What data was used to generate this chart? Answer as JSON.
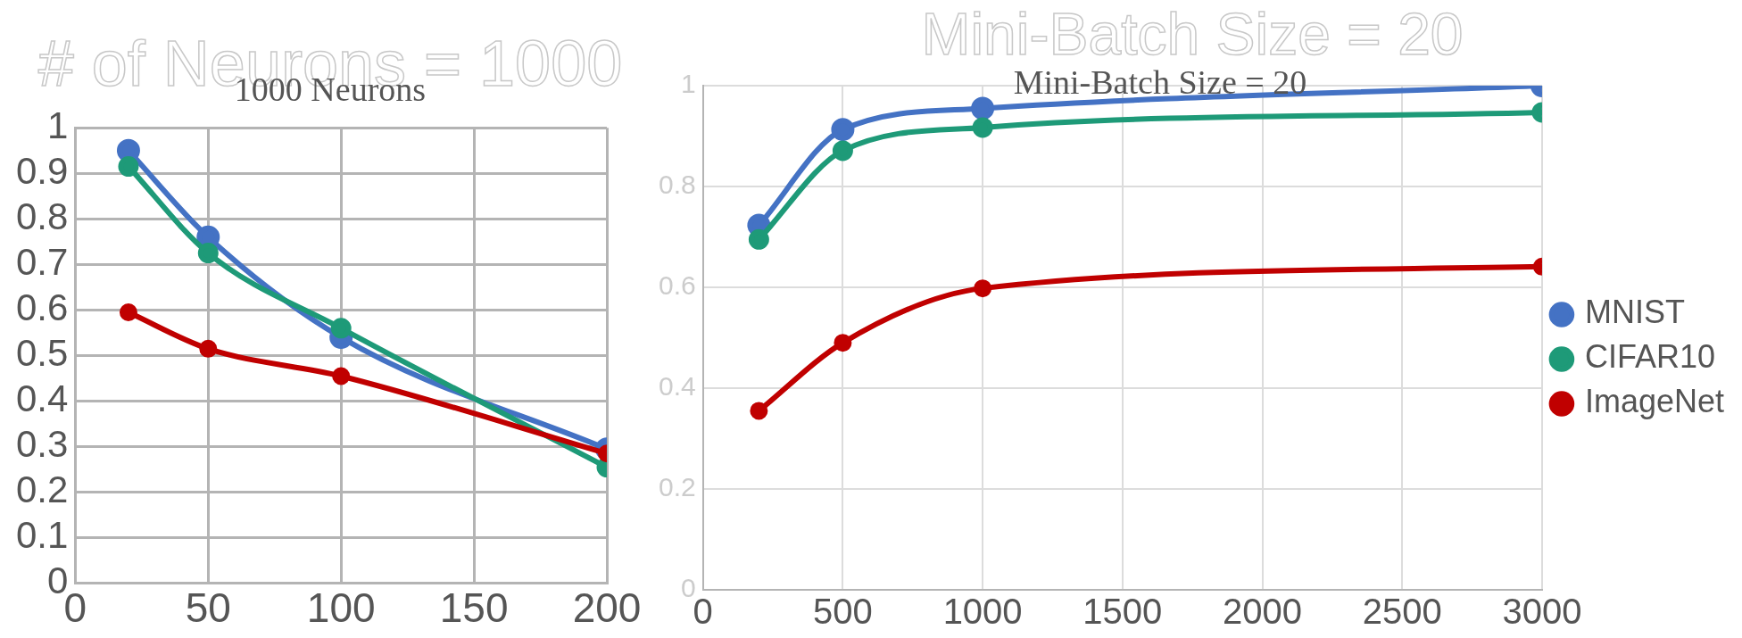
{
  "chart_data": [
    {
      "type": "line",
      "title": "1000 Neurons",
      "subtitle": "# of Neurons = 1000",
      "x": [
        20,
        50,
        100,
        200
      ],
      "series": [
        {
          "color": "#4472c4",
          "values": [
            0.95,
            0.76,
            0.54,
            0.295
          ]
        },
        {
          "color": "#1e9a78",
          "values": [
            0.915,
            0.725,
            0.56,
            0.255
          ]
        },
        {
          "color": "#c00000",
          "values": [
            0.595,
            0.515,
            0.455,
            0.285
          ]
        }
      ],
      "xlim": [
        0,
        200
      ],
      "xticks": [
        0,
        50,
        100,
        150,
        200
      ],
      "ylim": [
        0,
        1
      ],
      "yticks": [
        0,
        0.1,
        0.2,
        0.3,
        0.4,
        0.5,
        0.6,
        0.7,
        0.8,
        0.9,
        1
      ],
      "grid": true,
      "legend": false,
      "marker": "circle"
    },
    {
      "type": "line",
      "title": "Mini-Batch Size = 20",
      "subtitle": "Mini-Batch Size = 20",
      "x": [
        200,
        500,
        1000,
        3000
      ],
      "series": [
        {
          "name": "MNIST",
          "color": "#4472c4",
          "values": [
            0.723,
            0.913,
            0.955,
            1.0
          ]
        },
        {
          "name": "CIFAR10",
          "color": "#1e9a78",
          "values": [
            0.695,
            0.871,
            0.917,
            0.947
          ]
        },
        {
          "name": "ImageNet",
          "color": "#c00000",
          "values": [
            0.355,
            0.49,
            0.598,
            0.641
          ]
        }
      ],
      "xlim": [
        0,
        3000
      ],
      "xticks": [
        0,
        500,
        1000,
        1500,
        2000,
        2500,
        3000
      ],
      "ylim": [
        0,
        1
      ],
      "yticks": [
        0,
        0.2,
        0.4,
        0.6,
        0.8,
        1
      ],
      "grid": true,
      "legend": "right",
      "marker": "circle"
    }
  ]
}
